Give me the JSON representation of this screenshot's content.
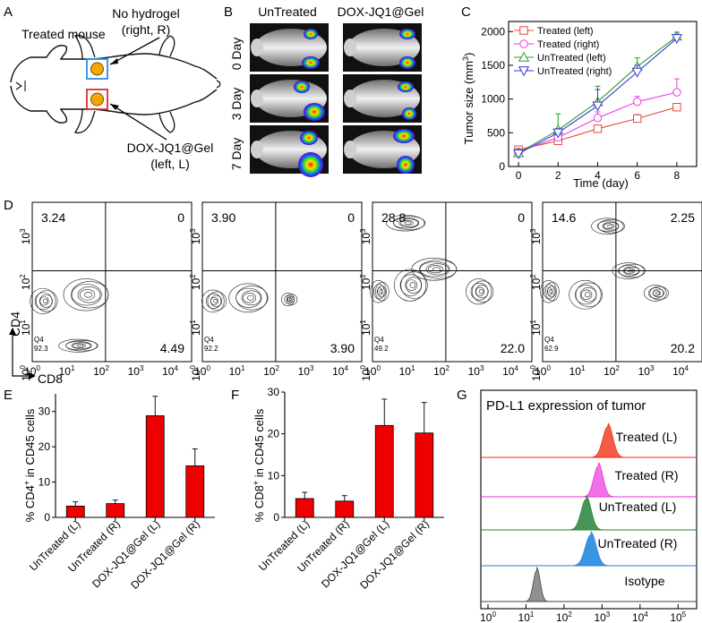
{
  "panel_letters": [
    "A",
    "B",
    "C",
    "D",
    "E",
    "F",
    "G"
  ],
  "panel_a": {
    "treated_mouse": "Treated mouse",
    "no_hydrogel_line1": "No hydrogel",
    "no_hydrogel_line2": "(right, R)",
    "dox_line1": "DOX-JQ1@Gel",
    "dox_line2": "(left, L)"
  },
  "panel_b": {
    "col_untreated": "UnTreated",
    "col_dox": "DOX-JQ1@Gel",
    "rows": [
      "0 Day",
      "3 Day",
      "7 Day"
    ]
  },
  "chart_data": [
    {
      "panel": "C",
      "type": "line",
      "xlabel": "Time (day)",
      "ylabel_main": "Tumor size (mm",
      "ylabel_sup": "3",
      "ylabel_end": ")",
      "xlim": [
        -0.5,
        9
      ],
      "ylim": [
        0,
        2150
      ],
      "x_ticks": [
        "0",
        "2",
        "4",
        "6",
        "8"
      ],
      "y_ticks": [
        "0",
        "500",
        "1000",
        "1500",
        "2000"
      ],
      "x": [
        0,
        2,
        4,
        6,
        8
      ],
      "series": [
        {
          "name": "Treated (left)",
          "values": [
            250,
            380,
            560,
            710,
            880
          ],
          "err": [
            40,
            50,
            50,
            60,
            50
          ],
          "color": "#e8483f",
          "marker": "square"
        },
        {
          "name": "Treated (right)",
          "values": [
            220,
            430,
            720,
            960,
            1100
          ],
          "err": [
            40,
            60,
            90,
            80,
            200
          ],
          "color": "#e83ee3",
          "marker": "circle"
        },
        {
          "name": "UnTreated (left)",
          "values": [
            200,
            540,
            960,
            1480,
            1930
          ],
          "err": [
            50,
            240,
            230,
            130,
            60
          ],
          "color": "#2a9a2a",
          "marker": "triangle-up"
        },
        {
          "name": "UnTreated (right)",
          "values": [
            190,
            500,
            900,
            1400,
            1900
          ],
          "err": [
            40,
            60,
            240,
            100,
            60
          ],
          "color": "#3333dd",
          "marker": "triangle-down"
        }
      ]
    },
    {
      "panel": "D",
      "type": "contour",
      "ylabel": "CD4",
      "xlabel": "CD8",
      "x_ticks": [
        "10^0",
        "10^1",
        "10^2",
        "10^3",
        "10^4"
      ],
      "y_ticks": [
        "10^0",
        "10^1",
        "10^2",
        "10^3"
      ],
      "plots": [
        {
          "q1": "3.24",
          "q2": "0",
          "q3": "4.49",
          "q4_label": "Q4",
          "q4_value": "92.3"
        },
        {
          "q1": "3.90",
          "q2": "0",
          "q3": "3.90",
          "q4_label": "Q4",
          "q4_value": "92.2"
        },
        {
          "q1": "28.8",
          "q2": "0",
          "q3": "22.0",
          "q4_label": "Q4",
          "q4_value": "49.2"
        },
        {
          "q1": "14.6",
          "q2": "2.25",
          "q3": "20.2",
          "q4_label": "Q4",
          "q4_value": "62.9"
        }
      ]
    },
    {
      "panel": "E",
      "type": "bar",
      "ylabel_pre": "% CD4",
      "ylabel_sup": "+",
      "ylabel_post": " in CD45 cells",
      "ylim": [
        0,
        35
      ],
      "y_ticks": [
        "0",
        "10",
        "20",
        "30"
      ],
      "categories": [
        "UnTreated (L)",
        "UnTreated (R)",
        "DOX-JQ1@Gel (L)",
        "DOX-JQ1@Gel (R)"
      ],
      "values": [
        3.2,
        3.9,
        28.8,
        14.6
      ],
      "err": [
        1.2,
        1.0,
        5.5,
        4.8
      ],
      "color": "#ee0000"
    },
    {
      "panel": "F",
      "type": "bar",
      "ylabel_pre": "% CD8",
      "ylabel_sup": "+",
      "ylabel_post": " in CD45 cells",
      "ylim": [
        0,
        30
      ],
      "y_ticks": [
        "0",
        "10",
        "20",
        "30"
      ],
      "categories": [
        "UnTreated (L)",
        "UnTreated (R)",
        "DOX-JQ1@Gel (L)",
        "DOX-JQ1@Gel (R)"
      ],
      "values": [
        4.5,
        3.9,
        22.0,
        20.2
      ],
      "err": [
        1.5,
        1.3,
        6.3,
        7.3
      ],
      "color": "#ee0000"
    },
    {
      "panel": "G",
      "type": "histogram",
      "title": "PD-L1 expression of tumor",
      "x_ticks": [
        "10^0",
        "10^1",
        "10^2",
        "10^3",
        "10^4",
        "10^5"
      ],
      "series": [
        {
          "name": "Treated (L)",
          "peak_log": 3.15,
          "width_log": 0.13,
          "color": "#f0281e",
          "fill": "#f4553a"
        },
        {
          "name": "Treated (R)",
          "peak_log": 2.9,
          "width_log": 0.12,
          "color": "#e832d7",
          "fill": "#f06ae6"
        },
        {
          "name": "UnTreated (L)",
          "peak_log": 2.58,
          "width_log": 0.13,
          "color": "#208a20",
          "fill": "#3f8f52"
        },
        {
          "name": "UnTreated (R)",
          "peak_log": 2.7,
          "width_log": 0.14,
          "color": "#2a7dd8",
          "fill": "#2f8fe0"
        },
        {
          "name": "Isotype",
          "peak_log": 1.28,
          "width_log": 0.09,
          "color": "#444444",
          "fill": "#8c8c8c"
        }
      ]
    }
  ]
}
